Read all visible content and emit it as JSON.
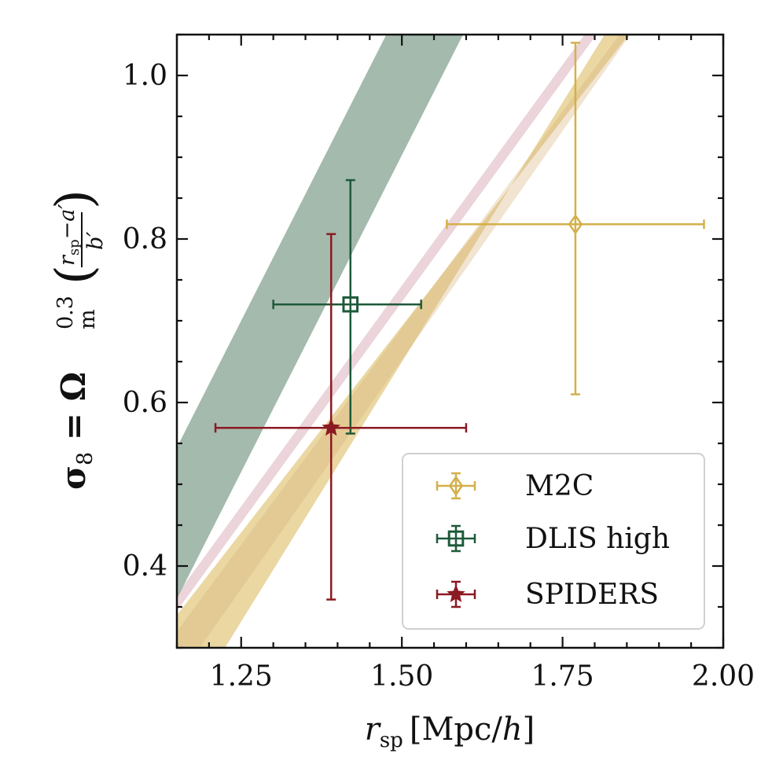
{
  "chart_data": {
    "type": "scatter",
    "xlabel_main": "r",
    "xlabel_sub": "sp",
    "xlabel_units_open": "[Mpc/",
    "xlabel_units_h": "h",
    "xlabel_units_close": "]",
    "ylabel": {
      "sigma": "σ",
      "sigma_sub": "8",
      "equals": " = Ω",
      "omega_sup": "0.3",
      "omega_sub": "m",
      "frac_num_r": "r",
      "frac_num_sub": "sp",
      "frac_num_rest": "−a′",
      "frac_den": "b′"
    },
    "xlim": [
      1.15,
      2.0
    ],
    "ylim": [
      0.3,
      1.05
    ],
    "x_ticks": [
      1.25,
      1.5,
      1.75,
      2.0
    ],
    "x_tick_labels": [
      "1.25",
      "1.50",
      "1.75",
      "2.00"
    ],
    "y_ticks": [
      0.4,
      0.6,
      0.8,
      1.0
    ],
    "y_tick_labels": [
      "0.4",
      "0.6",
      "0.8",
      "1.0"
    ],
    "legend_position": "lower-right",
    "bands": [
      {
        "name": "M2C",
        "color": "#e6d092",
        "opacity": 0.85,
        "slope": 1.27,
        "lower_at_xmin": 0.205,
        "upper_at_xmin": 0.34,
        "upper_slope": 1.01
      },
      {
        "name": "SPIDERS",
        "color": "#e8cdd3",
        "opacity": 0.85,
        "slope": 1.08,
        "lower_at_xmin": 0.345,
        "upper_at_xmin": 0.365
      },
      {
        "name": "DLIS high",
        "color": "#7fa08e",
        "opacity": 0.72,
        "slope": 1.55,
        "lower_at_xmin": 0.36,
        "upper_at_xmin": 0.545
      }
    ],
    "series": [
      {
        "name": "M2C",
        "color": "#d4b04a",
        "marker": "diamond",
        "x": 1.77,
        "y": 0.818,
        "xerr": [
          0.2,
          0.2
        ],
        "yerr": [
          0.208,
          0.222
        ]
      },
      {
        "name": "DLIS high",
        "color": "#1e5a3a",
        "marker": "square",
        "x": 1.42,
        "y": 0.72,
        "xerr": [
          0.12,
          0.11
        ],
        "yerr": [
          0.158,
          0.152
        ]
      },
      {
        "name": "SPIDERS",
        "color": "#8b1a22",
        "marker": "star",
        "x": 1.39,
        "y": 0.569,
        "xerr": [
          0.18,
          0.21
        ],
        "yerr": [
          0.21,
          0.237
        ]
      }
    ]
  }
}
